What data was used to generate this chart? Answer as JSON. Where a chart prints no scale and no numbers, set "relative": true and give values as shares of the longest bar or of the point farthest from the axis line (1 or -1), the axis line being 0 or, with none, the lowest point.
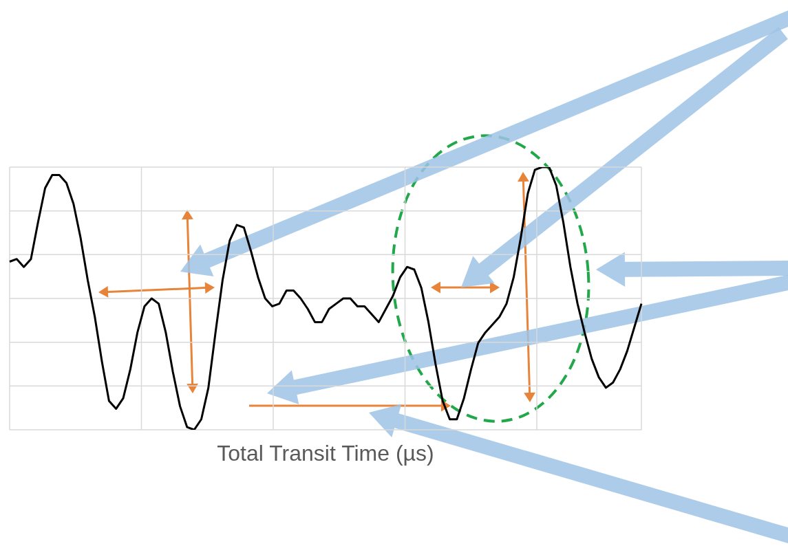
{
  "chart_data": {
    "type": "line",
    "xlabel": "Total Transit Time (µs)",
    "relative": true,
    "grid": true,
    "categories": [
      null,
      null,
      null,
      null,
      null,
      null,
      null,
      null,
      null,
      null,
      null,
      null,
      null,
      null,
      null,
      null,
      null,
      null,
      null,
      null,
      null,
      null,
      null,
      null,
      null,
      null,
      null,
      null,
      null,
      null,
      null,
      null,
      null,
      null,
      null,
      null,
      null,
      null,
      null,
      null,
      null,
      null,
      null,
      null,
      null,
      null,
      null,
      null,
      null,
      null,
      null,
      null,
      null,
      null,
      null,
      null,
      null,
      null,
      null,
      null,
      null,
      null,
      null,
      null,
      null,
      null,
      null,
      null,
      null,
      null,
      null,
      null,
      null,
      null,
      null,
      null,
      null,
      null,
      null,
      null,
      null,
      null,
      null,
      null,
      null,
      null,
      null,
      null,
      null,
      null
    ],
    "series": [
      {
        "color": "#000000",
        "values": [
          0.64,
          0.65,
          0.62,
          0.65,
          0.79,
          0.92,
          0.97,
          0.97,
          0.94,
          0.86,
          0.73,
          0.57,
          0.43,
          0.26,
          0.11,
          0.08,
          0.12,
          0.23,
          0.37,
          0.47,
          0.5,
          0.48,
          0.37,
          0.22,
          0.09,
          0.01,
          0,
          0.04,
          0.16,
          0.37,
          0.57,
          0.72,
          0.78,
          0.77,
          0.68,
          0.58,
          0.5,
          0.47,
          0.48,
          0.53,
          0.53,
          0.5,
          0.46,
          0.41,
          0.41,
          0.46,
          0.48,
          0.5,
          0.5,
          0.47,
          0.47,
          0.44,
          0.41,
          0.46,
          0.51,
          0.58,
          0.62,
          0.61,
          0.54,
          0.41,
          0.25,
          0.11,
          0.04,
          0.04,
          0.12,
          0.23,
          0.33,
          0.37,
          0.4,
          0.43,
          0.48,
          0.58,
          0.73,
          0.9,
          0.99,
          1,
          1,
          0.93,
          0.79,
          0.62,
          0.48,
          0.37,
          0.27,
          0.2,
          0.16,
          0.18,
          0.23,
          0.3,
          0.39,
          0.48
        ]
      }
    ]
  }
}
